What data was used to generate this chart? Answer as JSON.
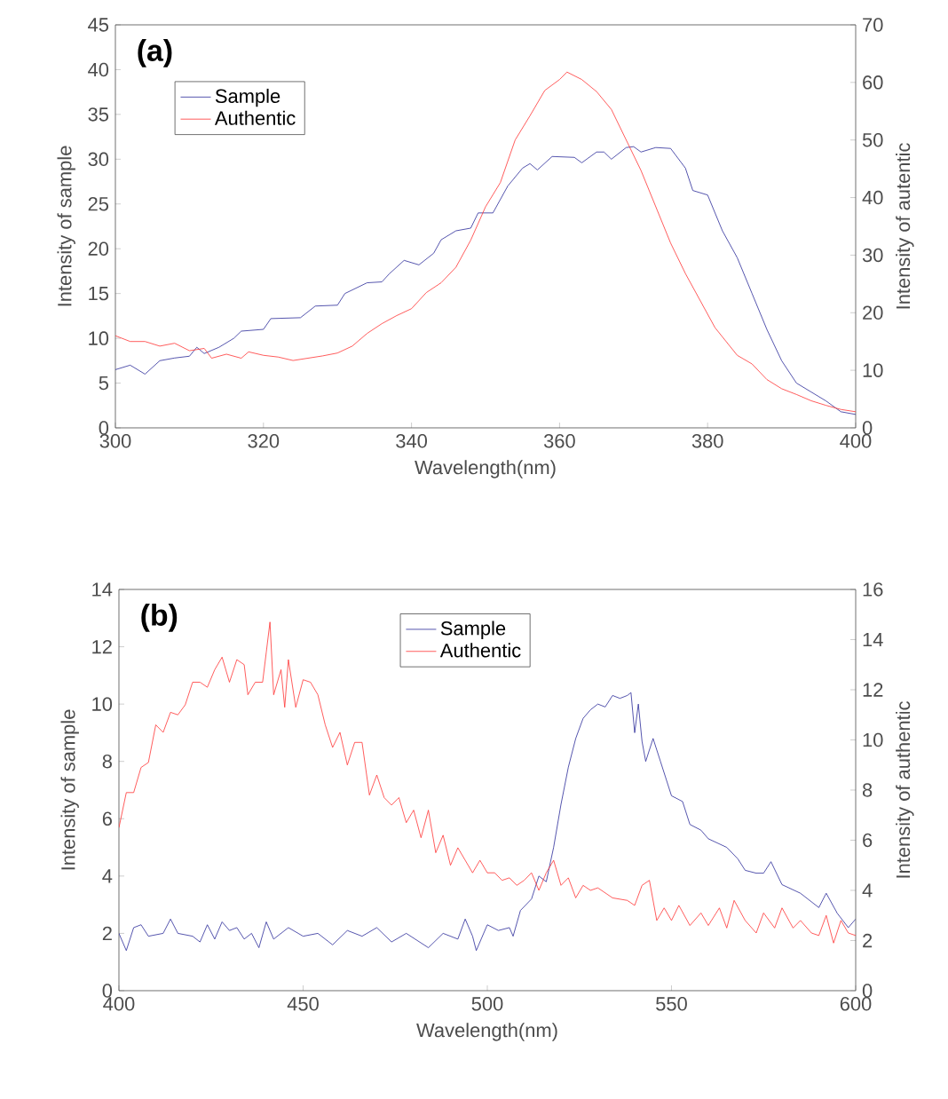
{
  "chart_data": [
    {
      "type": "line",
      "xlabel": "Wavelength(nm)",
      "ylabel": "Intensity of sample",
      "y2label": "Intensity of autentic",
      "annotations": [
        "(a)"
      ],
      "legend": "top left",
      "grid": false,
      "xlim": [
        300,
        400
      ],
      "ylim": [
        0,
        45
      ],
      "y2lim": [
        0,
        70
      ],
      "xticks": [
        300,
        320,
        340,
        360,
        380,
        400
      ],
      "yticks": [
        0,
        5,
        10,
        15,
        20,
        25,
        30,
        35,
        40,
        45
      ],
      "y2ticks": [
        0,
        10,
        20,
        30,
        40,
        50,
        60,
        70
      ],
      "series": [
        {
          "name": "Sample",
          "color": "#2b2b99",
          "x": [
            300,
            302,
            304,
            306,
            308,
            310,
            311,
            312,
            314,
            316,
            317,
            320,
            321,
            325,
            327,
            330,
            331,
            334,
            336,
            337,
            339,
            341,
            343,
            344,
            346,
            348,
            349,
            351,
            353,
            355,
            356,
            357,
            359,
            362,
            363,
            365,
            366,
            367,
            369,
            370,
            371,
            373,
            375,
            377,
            378,
            380,
            382,
            384,
            386,
            388,
            390,
            392,
            394,
            396,
            398,
            400
          ],
          "values": [
            6.5,
            7,
            6,
            7.5,
            7.8,
            8,
            9,
            8.3,
            9,
            10,
            10.8,
            11,
            12.2,
            12.3,
            13.6,
            13.7,
            15,
            16.2,
            16.3,
            17.2,
            18.7,
            18.2,
            19.5,
            21,
            22,
            22.3,
            24,
            24,
            27,
            29,
            29.5,
            28.8,
            30.3,
            30.2,
            29.6,
            30.8,
            30.8,
            30,
            31.3,
            31.4,
            30.8,
            31.3,
            31.2,
            29,
            26.5,
            26,
            22,
            19,
            15,
            11,
            7.5,
            5,
            4,
            3,
            1.8,
            1.5
          ]
        },
        {
          "name": "Authentic",
          "color": "#ff3333",
          "axis": "y2",
          "x": [
            300,
            302,
            304,
            306,
            308,
            310,
            312,
            313,
            315,
            317,
            318,
            320,
            322,
            324,
            326,
            328,
            330,
            332,
            334,
            336,
            338,
            340,
            342,
            344,
            346,
            348,
            350,
            352,
            354,
            356,
            358,
            360,
            361,
            363,
            365,
            367,
            369,
            371,
            373,
            375,
            377,
            379,
            381,
            384,
            386,
            388,
            390,
            392,
            394,
            396,
            398,
            400
          ],
          "values": [
            16,
            15,
            15,
            14.2,
            14.7,
            13.4,
            13.8,
            12.1,
            12.8,
            12.1,
            13.2,
            12.6,
            12.3,
            11.7,
            12.1,
            12.5,
            13,
            14.2,
            16.4,
            18.1,
            19.5,
            20.7,
            23.5,
            25.2,
            27.9,
            32.6,
            38.4,
            42.6,
            50,
            54.2,
            58.6,
            60.5,
            61.8,
            60.5,
            58.4,
            55.3,
            50,
            44.7,
            38.4,
            32.1,
            26.8,
            22.1,
            17.4,
            12.6,
            11.1,
            8.4,
            6.8,
            5.8,
            4.7,
            3.9,
            3.2,
            2.8
          ]
        }
      ]
    },
    {
      "type": "line",
      "xlabel": "Wavelength(nm)",
      "ylabel": "Intensity of sample",
      "y2label": "Intensity of authentic",
      "annotations": [
        "(b)"
      ],
      "legend": "top",
      "grid": false,
      "xlim": [
        400,
        600
      ],
      "ylim": [
        0,
        14
      ],
      "y2lim": [
        0,
        16
      ],
      "xticks": [
        400,
        450,
        500,
        550,
        600
      ],
      "yticks": [
        0,
        2,
        4,
        6,
        8,
        10,
        12,
        14
      ],
      "y2ticks": [
        0,
        2,
        4,
        6,
        8,
        10,
        12,
        14,
        16
      ],
      "series": [
        {
          "name": "Sample",
          "color": "#2b2b99",
          "x": [
            400,
            402,
            404,
            406,
            408,
            412,
            414,
            416,
            420,
            422,
            424,
            426,
            428,
            430,
            432,
            434,
            436,
            438,
            440,
            442,
            446,
            450,
            454,
            458,
            462,
            466,
            470,
            474,
            478,
            484,
            488,
            492,
            494,
            496,
            497,
            500,
            503,
            506,
            507,
            509,
            512,
            514,
            516,
            518,
            520,
            522,
            524,
            526,
            528,
            530,
            532,
            534,
            536,
            538,
            539,
            540,
            541,
            542,
            543,
            545,
            547,
            550,
            553,
            555,
            558,
            560,
            565,
            568,
            570,
            573,
            575,
            577,
            580,
            585,
            590,
            592,
            595,
            598,
            600
          ],
          "values": [
            2,
            1.4,
            2.2,
            2.3,
            1.9,
            2.0,
            2.5,
            2.0,
            1.9,
            1.7,
            2.3,
            1.8,
            2.4,
            2.1,
            2.2,
            1.8,
            2.0,
            1.5,
            2.4,
            1.8,
            2.2,
            1.9,
            2.0,
            1.6,
            2.1,
            1.9,
            2.2,
            1.7,
            2.0,
            1.5,
            2.0,
            1.8,
            2.5,
            1.9,
            1.4,
            2.3,
            2.1,
            2.2,
            1.9,
            2.8,
            3.2,
            4.0,
            3.8,
            5.0,
            6.5,
            7.8,
            8.8,
            9.5,
            9.8,
            10.0,
            9.9,
            10.3,
            10.2,
            10.3,
            10.4,
            9.0,
            10.0,
            8.7,
            8.0,
            8.8,
            8.0,
            6.8,
            6.6,
            5.8,
            5.6,
            5.3,
            5.0,
            4.6,
            4.2,
            4.1,
            4.1,
            4.5,
            3.7,
            3.4,
            2.9,
            3.4,
            2.7,
            2.2,
            2.5
          ]
        },
        {
          "name": "Authentic",
          "color": "#ff3333",
          "axis": "y2",
          "x": [
            400,
            402,
            404,
            406,
            408,
            410,
            412,
            414,
            416,
            418,
            420,
            422,
            424,
            426,
            428,
            430,
            432,
            434,
            435,
            437,
            439,
            440,
            441,
            442,
            444,
            445,
            446,
            448,
            450,
            452,
            454,
            456,
            458,
            460,
            462,
            464,
            466,
            468,
            470,
            472,
            474,
            476,
            478,
            480,
            482,
            484,
            486,
            488,
            490,
            492,
            494,
            496,
            498,
            500,
            502,
            504,
            506,
            508,
            510,
            512,
            514,
            516,
            518,
            520,
            522,
            524,
            526,
            528,
            530,
            534,
            538,
            540,
            542,
            544,
            546,
            548,
            550,
            552,
            555,
            558,
            560,
            563,
            565,
            567,
            570,
            573,
            575,
            578,
            580,
            583,
            585,
            588,
            590,
            592,
            594,
            596,
            598,
            600
          ],
          "values": [
            6.5,
            7.9,
            7.9,
            8.9,
            9.1,
            10.6,
            10.3,
            11.1,
            11,
            11.4,
            12.3,
            12.3,
            12.1,
            12.8,
            13.3,
            12.3,
            13.2,
            13,
            11.8,
            12.3,
            12.3,
            13.5,
            14.7,
            11.8,
            12.8,
            11.3,
            13.2,
            11.3,
            12.4,
            12.3,
            11.8,
            10.6,
            9.7,
            10.3,
            9.0,
            9.9,
            9.9,
            7.8,
            8.6,
            7.7,
            7.4,
            7.7,
            6.7,
            7.2,
            6.1,
            7.2,
            5.5,
            6.2,
            5.0,
            5.7,
            5.2,
            4.7,
            5.2,
            4.7,
            4.7,
            4.4,
            4.5,
            4.2,
            4.4,
            4.7,
            4.0,
            4.7,
            5.2,
            4.2,
            4.5,
            3.7,
            4.2,
            4.0,
            4.1,
            3.7,
            3.6,
            3.4,
            4.2,
            4.4,
            2.8,
            3.3,
            2.8,
            3.4,
            2.6,
            3.1,
            2.6,
            3.3,
            2.5,
            3.6,
            2.8,
            2.3,
            3.1,
            2.5,
            3.3,
            2.5,
            2.8,
            2.3,
            2.2,
            3.0,
            1.9,
            2.8,
            2.3,
            2.2
          ]
        }
      ]
    }
  ]
}
